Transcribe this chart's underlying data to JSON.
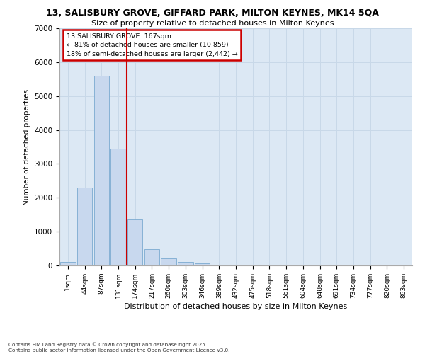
{
  "title_line1": "13, SALISBURY GROVE, GIFFARD PARK, MILTON KEYNES, MK14 5QA",
  "title_line2": "Size of property relative to detached houses in Milton Keynes",
  "xlabel": "Distribution of detached houses by size in Milton Keynes",
  "ylabel": "Number of detached properties",
  "categories": [
    "1sqm",
    "44sqm",
    "87sqm",
    "131sqm",
    "174sqm",
    "217sqm",
    "260sqm",
    "303sqm",
    "346sqm",
    "389sqm",
    "432sqm",
    "475sqm",
    "518sqm",
    "561sqm",
    "604sqm",
    "648sqm",
    "691sqm",
    "734sqm",
    "777sqm",
    "820sqm",
    "863sqm"
  ],
  "values": [
    100,
    2300,
    5600,
    3450,
    1350,
    480,
    200,
    100,
    60,
    0,
    0,
    0,
    0,
    0,
    0,
    0,
    0,
    0,
    0,
    0,
    0
  ],
  "bar_color": "#c8d8ee",
  "bar_edge_color": "#7aaad0",
  "vline_color": "#cc0000",
  "annotation_text": "13 SALISBURY GROVE: 167sqm\n← 81% of detached houses are smaller (10,859)\n18% of semi-detached houses are larger (2,442) →",
  "annotation_box_color": "#cc0000",
  "ylim": [
    0,
    7000
  ],
  "yticks": [
    0,
    1000,
    2000,
    3000,
    4000,
    5000,
    6000,
    7000
  ],
  "grid_color": "#c8d8e8",
  "bg_color": "#dce8f4",
  "footer_line1": "Contains HM Land Registry data © Crown copyright and database right 2025.",
  "footer_line2": "Contains public sector information licensed under the Open Government Licence v3.0."
}
